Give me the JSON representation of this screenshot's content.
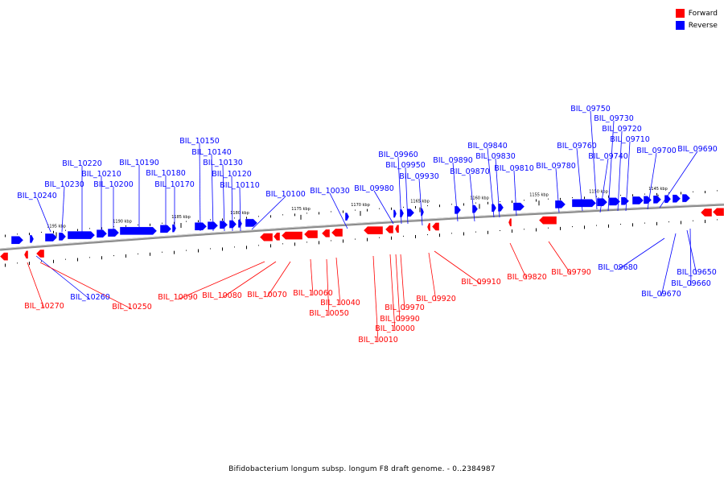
{
  "legend": {
    "forward": {
      "label": "Forward",
      "color": "#ff0000"
    },
    "reverse": {
      "label": "Reverse",
      "color": "#0000ff"
    }
  },
  "caption": "Bifidobacterium longum subsp. longum F8 draft genome. - 0..2384987",
  "ruler": [
    "1195 kbp",
    "1190 kbp",
    "1185 kbp",
    "1180 kbp",
    "1175 kbp",
    "1170 kbp",
    "1165 kbp",
    "1160 kbp",
    "1155 kbp",
    "1150 kbp",
    "1145 kbp"
  ],
  "reverse_labels": [
    "BIL_09750",
    "BIL_09730",
    "BIL_09720",
    "BIL_09710",
    "BIL_09700",
    "BIL_09690",
    "BIL_09760",
    "BIL_09740",
    "BIL_09840",
    "BIL_09830",
    "BIL_09810",
    "BIL_09780",
    "BIL_09960",
    "BIL_09950",
    "BIL_09930",
    "BIL_09890",
    "BIL_09870",
    "BIL_09980",
    "BIL_10030",
    "BIL_10100",
    "BIL_10150",
    "BIL_10140",
    "BIL_10130",
    "BIL_10120",
    "BIL_10110",
    "BIL_10190",
    "BIL_10180",
    "BIL_10170",
    "BIL_10220",
    "BIL_10210",
    "BIL_10230",
    "BIL_10200",
    "BIL_10240",
    "BIL_10260",
    "BIL_09680",
    "BIL_09670",
    "BIL_09650",
    "BIL_09660"
  ],
  "forward_labels": [
    "BIL_10270",
    "BIL_10250",
    "BIL_10090",
    "BIL_10080",
    "BIL_10070",
    "BIL_10060",
    "BIL_10040",
    "BIL_10050",
    "BIL_09970",
    "BIL_09990",
    "BIL_10000",
    "BIL_10010",
    "BIL_09920",
    "BIL_09910",
    "BIL_09820",
    "BIL_09790"
  ]
}
